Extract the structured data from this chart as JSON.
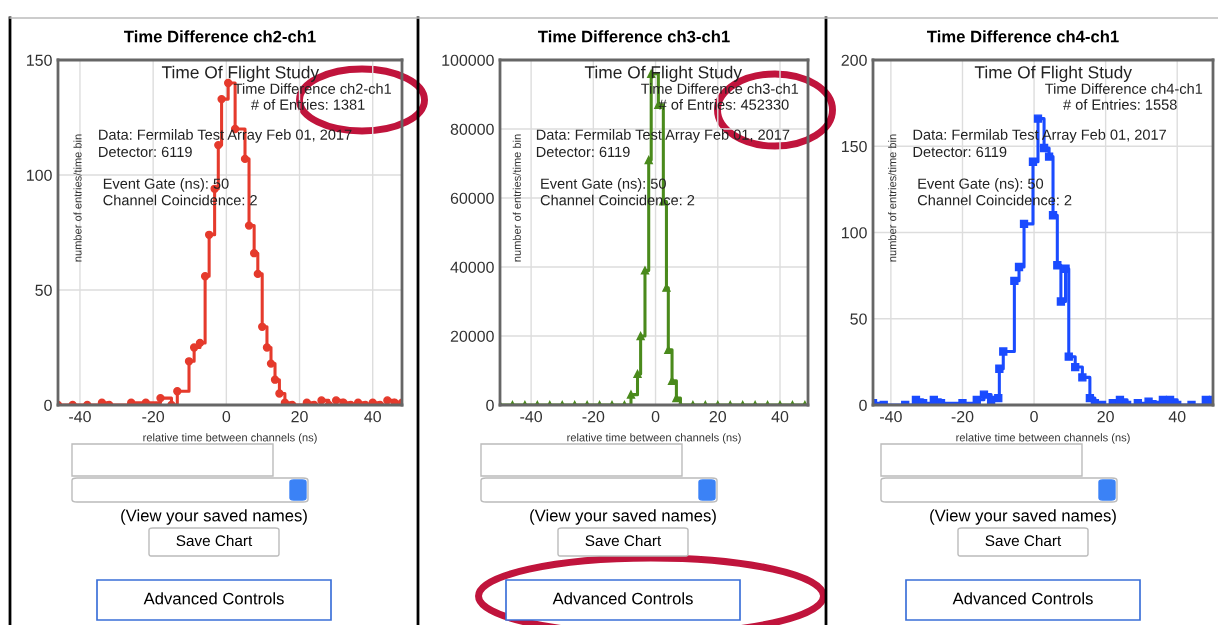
{
  "chart_data": [
    {
      "type": "step",
      "title": "Time Difference ch2-ch1",
      "subtitle": "Time Of Flight Study",
      "xlabel": "relative time between channels (ns)",
      "ylabel": "number of entries/time bin",
      "annotations": [
        "Time Difference ch2-ch1",
        "# of Entries: 1381",
        "Data: Fermilab Test Array Feb 01, 2017",
        "Detector: 6119",
        "Event Gate (ns): 50",
        "Channel Coincidence: 2",
        "(View your saved names)",
        "Save Chart",
        "Advanced Controls"
      ],
      "x": [
        -46,
        -42,
        -38,
        -34,
        -32,
        -26,
        -22,
        -18,
        -15,
        -13.4,
        -10.2,
        -8.8,
        -7.2,
        -5.8,
        -4.7,
        -3.2,
        -2.2,
        -1.3,
        0.5,
        2.4,
        5.1,
        6.2,
        7.6,
        8.6,
        9.8,
        11.1,
        12.2,
        13.3,
        14.5,
        16,
        18,
        22,
        24,
        26,
        28,
        30,
        32,
        34,
        36,
        38,
        40,
        42,
        44,
        46,
        48
      ],
      "series": [
        {
          "color": "#e53a2c",
          "values": [
            0,
            0,
            0,
            1,
            0,
            1,
            1,
            3,
            0,
            6,
            19,
            25,
            27,
            56,
            74,
            94,
            113,
            133,
            140,
            120,
            107,
            78,
            66,
            57,
            34,
            25,
            18,
            11,
            5,
            1,
            0,
            1,
            0,
            2,
            0,
            2,
            1,
            0,
            1,
            0,
            1,
            0,
            2,
            1,
            1
          ]
        }
      ],
      "xlim": [
        -46,
        48
      ],
      "ylim": [
        0,
        150
      ],
      "xticks": [
        -40,
        -20,
        0,
        20,
        40
      ],
      "yticks": [
        0,
        50,
        100,
        150
      ],
      "grid": true,
      "marker": "circle",
      "line_style": "solid"
    },
    {
      "type": "step",
      "title": "Time Difference ch3-ch1",
      "subtitle": "Time Of Flight Study",
      "xlabel": "relative time between channels (ns)",
      "ylabel": "number of entries/time bin",
      "annotations": [
        "Time Difference ch3-ch1",
        "# of Entries: 452330",
        "Data: Fermilab Test Array Feb 01, 2017",
        "Detector: 6119",
        "Event Gate (ns): 50",
        "Channel Coincidence: 2",
        "(View your saved names)",
        "Save Chart",
        "Advanced Controls"
      ],
      "x": [
        -50,
        -46,
        -42,
        -38,
        -34,
        -30,
        -26,
        -22,
        -18,
        -14,
        -10,
        -7.9,
        -5.8,
        -4.8,
        -3.4,
        -2.2,
        -1.4,
        0.9,
        2.5,
        3.5,
        4.1,
        5.3,
        6.7,
        8,
        12,
        16,
        20,
        24,
        28,
        32,
        36,
        40,
        44,
        48
      ],
      "series": [
        {
          "color": "#4a8a1c",
          "values": [
            0,
            0,
            0,
            0,
            0,
            0,
            0,
            0,
            0,
            0,
            0,
            3000,
            9000,
            20000,
            39000,
            71000,
            96000,
            87000,
            59000,
            34000,
            16000,
            7000,
            2000,
            0,
            0,
            0,
            0,
            0,
            0,
            0,
            0,
            0,
            0,
            0
          ]
        }
      ],
      "xlim": [
        -50,
        49
      ],
      "ylim": [
        0,
        100000
      ],
      "xticks": [
        -40,
        -20,
        0,
        20,
        40
      ],
      "yticks": [
        0,
        20000,
        40000,
        60000,
        80000,
        100000
      ],
      "grid": true,
      "marker": "triangle",
      "line_style": "solid"
    },
    {
      "type": "step",
      "title": "Time Difference ch4-ch1",
      "subtitle": "Time Of Flight Study",
      "xlabel": "relative time between channels (ns)",
      "ylabel": "number of entries/time bin",
      "annotations": [
        "Time Difference ch4-ch1",
        "# of Entries: 1558",
        "Data: Fermilab Test Array Feb 01, 2017",
        "Detector: 6119",
        "Event Gate (ns): 50",
        "Channel Coincidence: 2",
        "(View your saved names)",
        "Save Chart",
        "Advanced Controls"
      ],
      "x": [
        -45,
        -42,
        -36,
        -33,
        -31,
        -28,
        -26,
        -20,
        -16,
        -14,
        -12,
        -10,
        -9.7,
        -8.6,
        -5.5,
        -4.2,
        -2.8,
        -0.3,
        1.1,
        2.8,
        4.2,
        5.3,
        6.5,
        7.5,
        8.8,
        9.7,
        11.5,
        13.5,
        15.6,
        17,
        19,
        22,
        24,
        26,
        29,
        32,
        34,
        36,
        38,
        40,
        44,
        48,
        50
      ],
      "series": [
        {
          "color": "#1a4bff",
          "values": [
            1,
            0,
            0,
            3,
            1,
            3,
            1,
            1,
            3,
            6,
            3,
            4,
            21,
            31,
            72,
            80,
            105,
            141,
            166,
            149,
            144,
            110,
            81,
            60,
            79,
            28,
            22,
            16,
            4,
            1,
            0,
            1,
            3,
            0,
            1,
            2,
            0,
            3,
            3,
            0,
            0,
            3,
            3
          ]
        }
      ],
      "xlim": [
        -45,
        50
      ],
      "ylim": [
        0,
        200
      ],
      "xticks": [
        -40,
        -20,
        0,
        20,
        40
      ],
      "yticks": [
        0,
        50,
        100,
        150,
        200
      ],
      "grid": true,
      "marker": "square",
      "line_style": "solid"
    }
  ]
}
